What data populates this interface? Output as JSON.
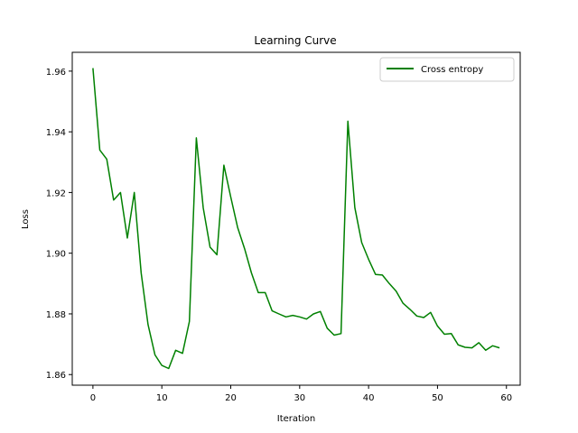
{
  "chart_data": {
    "type": "line",
    "title": "Learning Curve",
    "xlabel": "Iteration",
    "ylabel": "Loss",
    "xlim": [
      -3,
      62
    ],
    "ylim": [
      1.8565,
      1.9662
    ],
    "xticks": [
      0,
      10,
      20,
      30,
      40,
      50,
      60
    ],
    "yticks": [
      1.86,
      1.88,
      1.9,
      1.92,
      1.94,
      1.96
    ],
    "ytick_labels": [
      "1.86",
      "1.88",
      "1.90",
      "1.92",
      "1.94",
      "1.96"
    ],
    "grid": false,
    "legend_position": "top-right",
    "series": [
      {
        "name": "Cross entropy",
        "color": "#008000",
        "x": [
          0,
          1,
          2,
          3,
          4,
          5,
          6,
          7,
          8,
          9,
          10,
          11,
          12,
          13,
          14,
          15,
          16,
          17,
          18,
          19,
          20,
          21,
          22,
          23,
          24,
          25,
          26,
          27,
          28,
          29,
          30,
          31,
          32,
          33,
          34,
          35,
          36,
          37,
          38,
          39,
          40,
          41,
          42,
          43,
          44,
          45,
          46,
          47,
          48,
          49,
          50,
          51,
          52,
          53,
          54,
          55,
          56,
          57,
          58,
          59
        ],
        "y": [
          1.961,
          1.934,
          1.931,
          1.9175,
          1.92,
          1.905,
          1.92,
          1.8935,
          1.8765,
          1.8665,
          1.863,
          1.862,
          1.868,
          1.867,
          1.8775,
          1.938,
          1.915,
          1.902,
          1.8995,
          1.929,
          1.9185,
          1.9085,
          1.9015,
          1.8935,
          1.887,
          1.887,
          1.881,
          1.88,
          1.879,
          1.8795,
          1.879,
          1.8783,
          1.88,
          1.8808,
          1.8753,
          1.873,
          1.8735,
          1.9435,
          1.915,
          1.9035,
          1.898,
          1.893,
          1.8928,
          1.89,
          1.8875,
          1.8835,
          1.8815,
          1.8793,
          1.8788,
          1.8805,
          1.876,
          1.8733,
          1.8735,
          1.8698,
          1.869,
          1.8688,
          1.8705,
          1.868,
          1.8695,
          1.8688
        ]
      }
    ]
  }
}
